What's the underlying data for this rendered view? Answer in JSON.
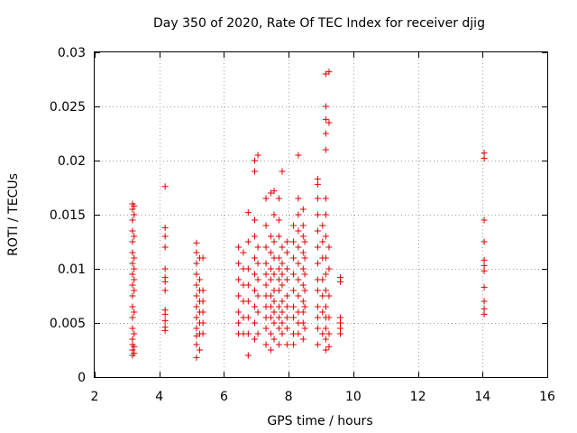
{
  "chart_data": {
    "type": "scatter",
    "title": "Day 350 of 2020, Rate Of TEC Index for receiver djig",
    "xlabel": "GPS time / hours",
    "ylabel": "ROTI / TECUs",
    "xlim": [
      2,
      16
    ],
    "ylim": [
      0,
      0.03
    ],
    "xticks": [
      "2",
      "4",
      "6",
      "8",
      "10",
      "12",
      "14",
      "16"
    ],
    "yticks": [
      "0",
      "0.005",
      "0.01",
      "0.015",
      "0.02",
      "0.025",
      "0.03"
    ],
    "grid": true,
    "marker": "+",
    "color": "#e00000",
    "points": [
      [
        3.17,
        0.002
      ],
      [
        3.17,
        0.0025
      ],
      [
        3.17,
        0.003
      ],
      [
        3.17,
        0.0035
      ],
      [
        3.17,
        0.0045
      ],
      [
        3.17,
        0.0055
      ],
      [
        3.17,
        0.0065
      ],
      [
        3.17,
        0.0075
      ],
      [
        3.17,
        0.0085
      ],
      [
        3.17,
        0.0095
      ],
      [
        3.17,
        0.0105
      ],
      [
        3.17,
        0.0115
      ],
      [
        3.17,
        0.0125
      ],
      [
        3.17,
        0.0135
      ],
      [
        3.17,
        0.0145
      ],
      [
        3.17,
        0.0155
      ],
      [
        3.17,
        0.016
      ],
      [
        3.22,
        0.0022
      ],
      [
        3.22,
        0.0028
      ],
      [
        3.22,
        0.004
      ],
      [
        3.22,
        0.006
      ],
      [
        3.22,
        0.008
      ],
      [
        3.22,
        0.009
      ],
      [
        3.22,
        0.01
      ],
      [
        3.22,
        0.011
      ],
      [
        3.22,
        0.013
      ],
      [
        3.22,
        0.015
      ],
      [
        3.22,
        0.0158
      ],
      [
        4.18,
        0.0176
      ],
      [
        4.18,
        0.0138
      ],
      [
        4.18,
        0.013
      ],
      [
        4.18,
        0.012
      ],
      [
        4.18,
        0.01
      ],
      [
        4.18,
        0.0092
      ],
      [
        4.18,
        0.0088
      ],
      [
        4.18,
        0.008
      ],
      [
        4.18,
        0.0062
      ],
      [
        4.18,
        0.0058
      ],
      [
        4.18,
        0.0052
      ],
      [
        4.18,
        0.0046
      ],
      [
        4.18,
        0.0043
      ],
      [
        5.15,
        0.0018
      ],
      [
        5.15,
        0.003
      ],
      [
        5.15,
        0.0038
      ],
      [
        5.15,
        0.0045
      ],
      [
        5.15,
        0.0055
      ],
      [
        5.15,
        0.0065
      ],
      [
        5.15,
        0.0075
      ],
      [
        5.15,
        0.0085
      ],
      [
        5.15,
        0.0095
      ],
      [
        5.15,
        0.0105
      ],
      [
        5.15,
        0.0115
      ],
      [
        5.15,
        0.0124
      ],
      [
        5.25,
        0.0025
      ],
      [
        5.25,
        0.004
      ],
      [
        5.25,
        0.005
      ],
      [
        5.25,
        0.006
      ],
      [
        5.25,
        0.007
      ],
      [
        5.25,
        0.008
      ],
      [
        5.25,
        0.009
      ],
      [
        5.25,
        0.011
      ],
      [
        5.35,
        0.004
      ],
      [
        5.35,
        0.005
      ],
      [
        5.35,
        0.006
      ],
      [
        5.35,
        0.007
      ],
      [
        5.35,
        0.008
      ],
      [
        5.35,
        0.011
      ],
      [
        6.45,
        0.004
      ],
      [
        6.45,
        0.005
      ],
      [
        6.45,
        0.006
      ],
      [
        6.45,
        0.0075
      ],
      [
        6.45,
        0.009
      ],
      [
        6.45,
        0.0105
      ],
      [
        6.45,
        0.012
      ],
      [
        6.6,
        0.004
      ],
      [
        6.6,
        0.0055
      ],
      [
        6.6,
        0.007
      ],
      [
        6.6,
        0.0085
      ],
      [
        6.6,
        0.01
      ],
      [
        6.6,
        0.0115
      ],
      [
        6.75,
        0.002
      ],
      [
        6.75,
        0.004
      ],
      [
        6.75,
        0.0055
      ],
      [
        6.75,
        0.007
      ],
      [
        6.75,
        0.0085
      ],
      [
        6.75,
        0.01
      ],
      [
        6.75,
        0.0125
      ],
      [
        6.75,
        0.0152
      ],
      [
        6.95,
        0.0035
      ],
      [
        6.95,
        0.005
      ],
      [
        6.95,
        0.0065
      ],
      [
        6.95,
        0.008
      ],
      [
        6.95,
        0.0095
      ],
      [
        6.95,
        0.011
      ],
      [
        6.95,
        0.013
      ],
      [
        6.95,
        0.0145
      ],
      [
        6.95,
        0.019
      ],
      [
        6.95,
        0.02
      ],
      [
        7.05,
        0.004
      ],
      [
        7.05,
        0.006
      ],
      [
        7.05,
        0.0075
      ],
      [
        7.05,
        0.009
      ],
      [
        7.05,
        0.0105
      ],
      [
        7.05,
        0.012
      ],
      [
        7.05,
        0.0205
      ],
      [
        7.3,
        0.003
      ],
      [
        7.3,
        0.0045
      ],
      [
        7.3,
        0.0055
      ],
      [
        7.3,
        0.0065
      ],
      [
        7.3,
        0.0075
      ],
      [
        7.3,
        0.0085
      ],
      [
        7.3,
        0.0095
      ],
      [
        7.3,
        0.0105
      ],
      [
        7.3,
        0.012
      ],
      [
        7.3,
        0.014
      ],
      [
        7.3,
        0.0165
      ],
      [
        7.45,
        0.0025
      ],
      [
        7.45,
        0.004
      ],
      [
        7.45,
        0.0055
      ],
      [
        7.45,
        0.0065
      ],
      [
        7.45,
        0.0075
      ],
      [
        7.45,
        0.009
      ],
      [
        7.45,
        0.01
      ],
      [
        7.45,
        0.0115
      ],
      [
        7.45,
        0.013
      ],
      [
        7.45,
        0.017
      ],
      [
        7.55,
        0.0035
      ],
      [
        7.55,
        0.005
      ],
      [
        7.55,
        0.006
      ],
      [
        7.55,
        0.007
      ],
      [
        7.55,
        0.008
      ],
      [
        7.55,
        0.0095
      ],
      [
        7.55,
        0.011
      ],
      [
        7.55,
        0.0125
      ],
      [
        7.55,
        0.015
      ],
      [
        7.55,
        0.0172
      ],
      [
        7.7,
        0.003
      ],
      [
        7.7,
        0.0045
      ],
      [
        7.7,
        0.0055
      ],
      [
        7.7,
        0.0065
      ],
      [
        7.7,
        0.008
      ],
      [
        7.7,
        0.009
      ],
      [
        7.7,
        0.01
      ],
      [
        7.7,
        0.011
      ],
      [
        7.7,
        0.013
      ],
      [
        7.7,
        0.0145
      ],
      [
        7.7,
        0.0165
      ],
      [
        7.8,
        0.004
      ],
      [
        7.8,
        0.005
      ],
      [
        7.8,
        0.006
      ],
      [
        7.8,
        0.007
      ],
      [
        7.8,
        0.0085
      ],
      [
        7.8,
        0.0095
      ],
      [
        7.8,
        0.0105
      ],
      [
        7.8,
        0.012
      ],
      [
        7.8,
        0.019
      ],
      [
        7.95,
        0.003
      ],
      [
        7.95,
        0.0045
      ],
      [
        7.95,
        0.0055
      ],
      [
        7.95,
        0.0065
      ],
      [
        7.95,
        0.0075
      ],
      [
        7.95,
        0.009
      ],
      [
        7.95,
        0.01
      ],
      [
        7.95,
        0.0115
      ],
      [
        7.95,
        0.0125
      ],
      [
        8.15,
        0.003
      ],
      [
        8.15,
        0.004
      ],
      [
        8.15,
        0.0055
      ],
      [
        8.15,
        0.0065
      ],
      [
        8.15,
        0.008
      ],
      [
        8.15,
        0.0095
      ],
      [
        8.15,
        0.011
      ],
      [
        8.15,
        0.0125
      ],
      [
        8.15,
        0.014
      ],
      [
        8.3,
        0.004
      ],
      [
        8.3,
        0.005
      ],
      [
        8.3,
        0.006
      ],
      [
        8.3,
        0.0075
      ],
      [
        8.3,
        0.009
      ],
      [
        8.3,
        0.0105
      ],
      [
        8.3,
        0.012
      ],
      [
        8.3,
        0.0135
      ],
      [
        8.3,
        0.015
      ],
      [
        8.3,
        0.0165
      ],
      [
        8.3,
        0.0205
      ],
      [
        8.45,
        0.0035
      ],
      [
        8.45,
        0.005
      ],
      [
        8.45,
        0.006
      ],
      [
        8.45,
        0.007
      ],
      [
        8.45,
        0.0085
      ],
      [
        8.45,
        0.01
      ],
      [
        8.45,
        0.0115
      ],
      [
        8.45,
        0.013
      ],
      [
        8.45,
        0.014
      ],
      [
        8.45,
        0.0155
      ],
      [
        8.5,
        0.0045
      ],
      [
        8.5,
        0.0065
      ],
      [
        8.5,
        0.008
      ],
      [
        8.5,
        0.0095
      ],
      [
        8.5,
        0.011
      ],
      [
        8.5,
        0.0125
      ],
      [
        8.9,
        0.003
      ],
      [
        8.9,
        0.0045
      ],
      [
        8.9,
        0.0055
      ],
      [
        8.9,
        0.0065
      ],
      [
        8.9,
        0.008
      ],
      [
        8.9,
        0.009
      ],
      [
        8.9,
        0.0105
      ],
      [
        8.9,
        0.012
      ],
      [
        8.9,
        0.0135
      ],
      [
        8.9,
        0.015
      ],
      [
        8.9,
        0.0165
      ],
      [
        8.9,
        0.0178
      ],
      [
        8.9,
        0.0183
      ],
      [
        9.05,
        0.004
      ],
      [
        9.05,
        0.006
      ],
      [
        9.05,
        0.0075
      ],
      [
        9.05,
        0.009
      ],
      [
        9.05,
        0.011
      ],
      [
        9.05,
        0.0125
      ],
      [
        9.05,
        0.014
      ],
      [
        9.15,
        0.0025
      ],
      [
        9.15,
        0.0035
      ],
      [
        9.15,
        0.0045
      ],
      [
        9.15,
        0.0055
      ],
      [
        9.15,
        0.0065
      ],
      [
        9.15,
        0.008
      ],
      [
        9.15,
        0.0095
      ],
      [
        9.15,
        0.011
      ],
      [
        9.15,
        0.013
      ],
      [
        9.15,
        0.015
      ],
      [
        9.15,
        0.0165
      ],
      [
        9.15,
        0.021
      ],
      [
        9.15,
        0.0225
      ],
      [
        9.15,
        0.0238
      ],
      [
        9.15,
        0.025
      ],
      [
        9.15,
        0.028
      ],
      [
        9.25,
        0.0028
      ],
      [
        9.25,
        0.004
      ],
      [
        9.25,
        0.0055
      ],
      [
        9.25,
        0.0075
      ],
      [
        9.25,
        0.01
      ],
      [
        9.25,
        0.012
      ],
      [
        9.25,
        0.0235
      ],
      [
        9.25,
        0.0282
      ],
      [
        9.6,
        0.004
      ],
      [
        9.6,
        0.0045
      ],
      [
        9.6,
        0.005
      ],
      [
        9.6,
        0.0055
      ],
      [
        9.6,
        0.0088
      ],
      [
        9.6,
        0.0092
      ],
      [
        14.05,
        0.0058
      ],
      [
        14.05,
        0.0063
      ],
      [
        14.05,
        0.007
      ],
      [
        14.05,
        0.0083
      ],
      [
        14.05,
        0.0098
      ],
      [
        14.05,
        0.0103
      ],
      [
        14.05,
        0.0108
      ],
      [
        14.05,
        0.0125
      ],
      [
        14.05,
        0.0145
      ],
      [
        14.05,
        0.0202
      ],
      [
        14.05,
        0.0207
      ]
    ]
  }
}
